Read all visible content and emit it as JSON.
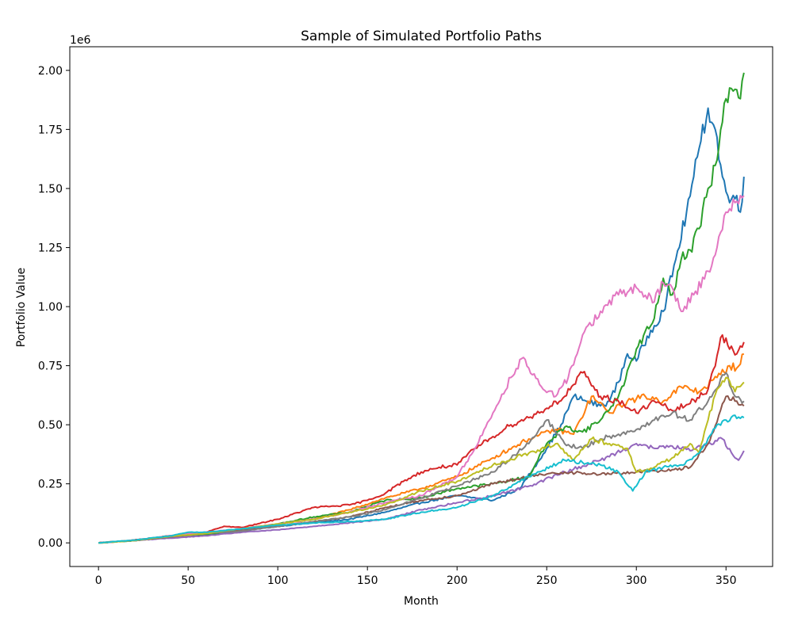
{
  "chart_data": {
    "type": "line",
    "title": "Sample of Simulated Portfolio Paths",
    "xlabel": "Month",
    "ylabel": "Portfolio Value",
    "y_offset_label": "1e6",
    "xlim": [
      -16,
      376
    ],
    "ylim": [
      -0.1,
      2.1
    ],
    "xticks": [
      0,
      50,
      100,
      150,
      200,
      250,
      300,
      350
    ],
    "xtick_labels": [
      "0",
      "50",
      "100",
      "150",
      "200",
      "250",
      "300",
      "350"
    ],
    "yticks": [
      0,
      0.25,
      0.5,
      0.75,
      1.0,
      1.25,
      1.5,
      1.75,
      2.0
    ],
    "ytick_labels": [
      "0.00",
      "0.25",
      "0.50",
      "0.75",
      "1.00",
      "1.25",
      "1.50",
      "1.75",
      "2.00"
    ],
    "grid": false,
    "legend": "none",
    "series": [
      {
        "color": "#1f77b4",
        "points": [
          [
            0,
            0
          ],
          [
            20,
            0.01
          ],
          [
            40,
            0.025
          ],
          [
            60,
            0.035
          ],
          [
            80,
            0.05
          ],
          [
            100,
            0.07
          ],
          [
            120,
            0.085
          ],
          [
            140,
            0.1
          ],
          [
            160,
            0.13
          ],
          [
            180,
            0.17
          ],
          [
            200,
            0.2
          ],
          [
            220,
            0.18
          ],
          [
            235,
            0.23
          ],
          [
            250,
            0.4
          ],
          [
            258,
            0.5
          ],
          [
            265,
            0.62
          ],
          [
            272,
            0.6
          ],
          [
            280,
            0.58
          ],
          [
            285,
            0.6
          ],
          [
            290,
            0.68
          ],
          [
            295,
            0.8
          ],
          [
            300,
            0.77
          ],
          [
            308,
            0.9
          ],
          [
            315,
            0.98
          ],
          [
            322,
            1.2
          ],
          [
            328,
            1.4
          ],
          [
            332,
            1.55
          ],
          [
            336,
            1.7
          ],
          [
            340,
            1.84
          ],
          [
            344,
            1.75
          ],
          [
            348,
            1.55
          ],
          [
            352,
            1.44
          ],
          [
            356,
            1.47
          ],
          [
            358,
            1.4
          ],
          [
            360,
            1.55
          ]
        ]
      },
      {
        "color": "#ff7f0e",
        "points": [
          [
            0,
            0
          ],
          [
            20,
            0.01
          ],
          [
            40,
            0.03
          ],
          [
            60,
            0.04
          ],
          [
            80,
            0.06
          ],
          [
            100,
            0.08
          ],
          [
            120,
            0.1
          ],
          [
            140,
            0.14
          ],
          [
            160,
            0.19
          ],
          [
            180,
            0.23
          ],
          [
            200,
            0.28
          ],
          [
            220,
            0.36
          ],
          [
            240,
            0.44
          ],
          [
            255,
            0.48
          ],
          [
            265,
            0.46
          ],
          [
            275,
            0.62
          ],
          [
            285,
            0.55
          ],
          [
            295,
            0.6
          ],
          [
            305,
            0.62
          ],
          [
            315,
            0.6
          ],
          [
            325,
            0.66
          ],
          [
            335,
            0.64
          ],
          [
            345,
            0.7
          ],
          [
            352,
            0.75
          ],
          [
            356,
            0.74
          ],
          [
            360,
            0.8
          ]
        ]
      },
      {
        "color": "#2ca02c",
        "points": [
          [
            0,
            0
          ],
          [
            20,
            0.01
          ],
          [
            40,
            0.025
          ],
          [
            60,
            0.035
          ],
          [
            80,
            0.055
          ],
          [
            100,
            0.08
          ],
          [
            120,
            0.11
          ],
          [
            140,
            0.13
          ],
          [
            160,
            0.18
          ],
          [
            180,
            0.19
          ],
          [
            200,
            0.23
          ],
          [
            220,
            0.25
          ],
          [
            240,
            0.28
          ],
          [
            250,
            0.42
          ],
          [
            260,
            0.49
          ],
          [
            270,
            0.47
          ],
          [
            280,
            0.52
          ],
          [
            290,
            0.62
          ],
          [
            300,
            0.82
          ],
          [
            310,
            0.95
          ],
          [
            315,
            1.12
          ],
          [
            320,
            1.05
          ],
          [
            325,
            1.2
          ],
          [
            330,
            1.24
          ],
          [
            335,
            1.33
          ],
          [
            340,
            1.5
          ],
          [
            345,
            1.62
          ],
          [
            350,
            1.88
          ],
          [
            355,
            1.92
          ],
          [
            358,
            1.88
          ],
          [
            360,
            1.99
          ]
        ]
      },
      {
        "color": "#d62728",
        "points": [
          [
            0,
            0
          ],
          [
            20,
            0.012
          ],
          [
            40,
            0.03
          ],
          [
            60,
            0.045
          ],
          [
            70,
            0.07
          ],
          [
            80,
            0.065
          ],
          [
            100,
            0.1
          ],
          [
            120,
            0.15
          ],
          [
            140,
            0.16
          ],
          [
            150,
            0.18
          ],
          [
            160,
            0.21
          ],
          [
            170,
            0.26
          ],
          [
            180,
            0.3
          ],
          [
            190,
            0.32
          ],
          [
            200,
            0.33
          ],
          [
            210,
            0.4
          ],
          [
            220,
            0.45
          ],
          [
            230,
            0.5
          ],
          [
            240,
            0.53
          ],
          [
            250,
            0.57
          ],
          [
            260,
            0.62
          ],
          [
            270,
            0.72
          ],
          [
            280,
            0.62
          ],
          [
            290,
            0.6
          ],
          [
            300,
            0.55
          ],
          [
            310,
            0.6
          ],
          [
            320,
            0.56
          ],
          [
            330,
            0.59
          ],
          [
            340,
            0.65
          ],
          [
            348,
            0.88
          ],
          [
            352,
            0.82
          ],
          [
            356,
            0.8
          ],
          [
            360,
            0.85
          ]
        ]
      },
      {
        "color": "#9467bd",
        "points": [
          [
            0,
            0
          ],
          [
            20,
            0.01
          ],
          [
            40,
            0.02
          ],
          [
            60,
            0.03
          ],
          [
            80,
            0.045
          ],
          [
            100,
            0.055
          ],
          [
            120,
            0.07
          ],
          [
            140,
            0.085
          ],
          [
            160,
            0.1
          ],
          [
            180,
            0.14
          ],
          [
            200,
            0.17
          ],
          [
            220,
            0.2
          ],
          [
            240,
            0.24
          ],
          [
            260,
            0.3
          ],
          [
            280,
            0.35
          ],
          [
            300,
            0.42
          ],
          [
            310,
            0.4
          ],
          [
            320,
            0.41
          ],
          [
            330,
            0.39
          ],
          [
            340,
            0.42
          ],
          [
            348,
            0.44
          ],
          [
            354,
            0.37
          ],
          [
            357,
            0.35
          ],
          [
            360,
            0.39
          ]
        ]
      },
      {
        "color": "#8c564b",
        "points": [
          [
            0,
            0
          ],
          [
            20,
            0.01
          ],
          [
            40,
            0.025
          ],
          [
            60,
            0.04
          ],
          [
            80,
            0.055
          ],
          [
            100,
            0.07
          ],
          [
            120,
            0.09
          ],
          [
            140,
            0.11
          ],
          [
            160,
            0.15
          ],
          [
            180,
            0.18
          ],
          [
            200,
            0.2
          ],
          [
            220,
            0.25
          ],
          [
            240,
            0.28
          ],
          [
            260,
            0.3
          ],
          [
            280,
            0.29
          ],
          [
            300,
            0.3
          ],
          [
            320,
            0.31
          ],
          [
            330,
            0.32
          ],
          [
            340,
            0.42
          ],
          [
            350,
            0.62
          ],
          [
            355,
            0.6
          ],
          [
            360,
            0.58
          ]
        ]
      },
      {
        "color": "#e377c2",
        "points": [
          [
            0,
            0
          ],
          [
            20,
            0.01
          ],
          [
            40,
            0.03
          ],
          [
            60,
            0.045
          ],
          [
            80,
            0.06
          ],
          [
            100,
            0.08
          ],
          [
            120,
            0.1
          ],
          [
            140,
            0.13
          ],
          [
            160,
            0.17
          ],
          [
            180,
            0.2
          ],
          [
            200,
            0.28
          ],
          [
            210,
            0.4
          ],
          [
            220,
            0.55
          ],
          [
            230,
            0.7
          ],
          [
            236,
            0.78
          ],
          [
            240,
            0.74
          ],
          [
            248,
            0.65
          ],
          [
            255,
            0.62
          ],
          [
            262,
            0.7
          ],
          [
            270,
            0.88
          ],
          [
            280,
            0.98
          ],
          [
            290,
            1.05
          ],
          [
            300,
            1.08
          ],
          [
            310,
            1.02
          ],
          [
            315,
            1.1
          ],
          [
            320,
            1.08
          ],
          [
            325,
            0.98
          ],
          [
            332,
            1.05
          ],
          [
            340,
            1.15
          ],
          [
            345,
            1.25
          ],
          [
            350,
            1.4
          ],
          [
            355,
            1.44
          ],
          [
            358,
            1.47
          ],
          [
            360,
            1.47
          ]
        ]
      },
      {
        "color": "#7f7f7f",
        "points": [
          [
            0,
            0
          ],
          [
            20,
            0.01
          ],
          [
            40,
            0.025
          ],
          [
            60,
            0.04
          ],
          [
            80,
            0.05
          ],
          [
            100,
            0.07
          ],
          [
            120,
            0.09
          ],
          [
            140,
            0.11
          ],
          [
            160,
            0.14
          ],
          [
            180,
            0.19
          ],
          [
            200,
            0.24
          ],
          [
            220,
            0.3
          ],
          [
            240,
            0.42
          ],
          [
            250,
            0.52
          ],
          [
            260,
            0.42
          ],
          [
            270,
            0.4
          ],
          [
            280,
            0.44
          ],
          [
            290,
            0.46
          ],
          [
            300,
            0.48
          ],
          [
            310,
            0.52
          ],
          [
            320,
            0.55
          ],
          [
            330,
            0.52
          ],
          [
            340,
            0.6
          ],
          [
            350,
            0.72
          ],
          [
            355,
            0.62
          ],
          [
            360,
            0.6
          ]
        ]
      },
      {
        "color": "#bcbd22",
        "points": [
          [
            0,
            0
          ],
          [
            20,
            0.01
          ],
          [
            40,
            0.028
          ],
          [
            60,
            0.04
          ],
          [
            80,
            0.06
          ],
          [
            100,
            0.08
          ],
          [
            120,
            0.1
          ],
          [
            140,
            0.13
          ],
          [
            160,
            0.16
          ],
          [
            180,
            0.22
          ],
          [
            200,
            0.26
          ],
          [
            220,
            0.33
          ],
          [
            240,
            0.38
          ],
          [
            255,
            0.42
          ],
          [
            265,
            0.35
          ],
          [
            275,
            0.44
          ],
          [
            285,
            0.42
          ],
          [
            295,
            0.4
          ],
          [
            300,
            0.3
          ],
          [
            310,
            0.32
          ],
          [
            320,
            0.36
          ],
          [
            330,
            0.42
          ],
          [
            335,
            0.38
          ],
          [
            340,
            0.52
          ],
          [
            345,
            0.65
          ],
          [
            350,
            0.7
          ],
          [
            355,
            0.64
          ],
          [
            360,
            0.68
          ]
        ]
      },
      {
        "color": "#17becf",
        "points": [
          [
            0,
            0
          ],
          [
            20,
            0.012
          ],
          [
            40,
            0.03
          ],
          [
            50,
            0.045
          ],
          [
            60,
            0.045
          ],
          [
            80,
            0.06
          ],
          [
            100,
            0.075
          ],
          [
            120,
            0.085
          ],
          [
            140,
            0.09
          ],
          [
            160,
            0.1
          ],
          [
            180,
            0.13
          ],
          [
            200,
            0.15
          ],
          [
            220,
            0.2
          ],
          [
            240,
            0.28
          ],
          [
            260,
            0.35
          ],
          [
            270,
            0.34
          ],
          [
            280,
            0.33
          ],
          [
            290,
            0.3
          ],
          [
            298,
            0.22
          ],
          [
            305,
            0.3
          ],
          [
            315,
            0.32
          ],
          [
            325,
            0.33
          ],
          [
            335,
            0.38
          ],
          [
            345,
            0.5
          ],
          [
            350,
            0.52
          ],
          [
            355,
            0.54
          ],
          [
            360,
            0.53
          ]
        ]
      }
    ]
  }
}
